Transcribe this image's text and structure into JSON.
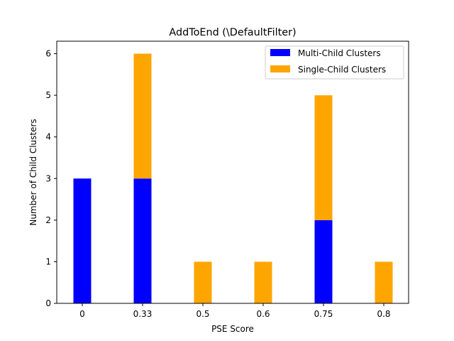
{
  "chart_data": {
    "type": "bar",
    "stacked": true,
    "title": "AddToEnd (\\DefaultFilter)",
    "xlabel": "PSE Score",
    "ylabel": "Number of Child Clusters",
    "categories": [
      "0",
      "0.33",
      "0.5",
      "0.6",
      "0.75",
      "0.8"
    ],
    "series": [
      {
        "name": "Multi-Child Clusters",
        "color": "#0000ff",
        "values": [
          3,
          3,
          0,
          0,
          2,
          0
        ]
      },
      {
        "name": "Single-Child Clusters",
        "color": "#ffa500",
        "values": [
          0,
          3,
          1,
          1,
          3,
          1
        ]
      }
    ],
    "ylim": [
      0,
      6.3
    ],
    "yticks": [
      0,
      1,
      2,
      3,
      4,
      5,
      6
    ],
    "grid": false,
    "legend_position": "top-right"
  }
}
